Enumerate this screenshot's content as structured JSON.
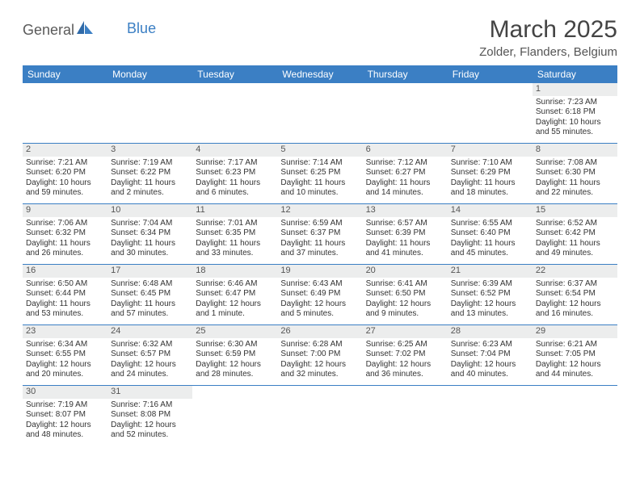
{
  "logo": {
    "part1": "General",
    "part2": "Blue"
  },
  "title": "March 2025",
  "location": "Zolder, Flanders, Belgium",
  "colors": {
    "header_bg": "#3b7fc4",
    "header_text": "#ffffff",
    "daynum_bg": "#eceded",
    "border": "#3b7fc4",
    "text": "#333333",
    "logo_gray": "#5a5a5a",
    "logo_blue": "#3b7fc4"
  },
  "weekdays": [
    "Sunday",
    "Monday",
    "Tuesday",
    "Wednesday",
    "Thursday",
    "Friday",
    "Saturday"
  ],
  "weeks": [
    [
      null,
      null,
      null,
      null,
      null,
      null,
      {
        "n": "1",
        "sr": "Sunrise: 7:23 AM",
        "ss": "Sunset: 6:18 PM",
        "dl1": "Daylight: 10 hours",
        "dl2": "and 55 minutes."
      }
    ],
    [
      {
        "n": "2",
        "sr": "Sunrise: 7:21 AM",
        "ss": "Sunset: 6:20 PM",
        "dl1": "Daylight: 10 hours",
        "dl2": "and 59 minutes."
      },
      {
        "n": "3",
        "sr": "Sunrise: 7:19 AM",
        "ss": "Sunset: 6:22 PM",
        "dl1": "Daylight: 11 hours",
        "dl2": "and 2 minutes."
      },
      {
        "n": "4",
        "sr": "Sunrise: 7:17 AM",
        "ss": "Sunset: 6:23 PM",
        "dl1": "Daylight: 11 hours",
        "dl2": "and 6 minutes."
      },
      {
        "n": "5",
        "sr": "Sunrise: 7:14 AM",
        "ss": "Sunset: 6:25 PM",
        "dl1": "Daylight: 11 hours",
        "dl2": "and 10 minutes."
      },
      {
        "n": "6",
        "sr": "Sunrise: 7:12 AM",
        "ss": "Sunset: 6:27 PM",
        "dl1": "Daylight: 11 hours",
        "dl2": "and 14 minutes."
      },
      {
        "n": "7",
        "sr": "Sunrise: 7:10 AM",
        "ss": "Sunset: 6:29 PM",
        "dl1": "Daylight: 11 hours",
        "dl2": "and 18 minutes."
      },
      {
        "n": "8",
        "sr": "Sunrise: 7:08 AM",
        "ss": "Sunset: 6:30 PM",
        "dl1": "Daylight: 11 hours",
        "dl2": "and 22 minutes."
      }
    ],
    [
      {
        "n": "9",
        "sr": "Sunrise: 7:06 AM",
        "ss": "Sunset: 6:32 PM",
        "dl1": "Daylight: 11 hours",
        "dl2": "and 26 minutes."
      },
      {
        "n": "10",
        "sr": "Sunrise: 7:04 AM",
        "ss": "Sunset: 6:34 PM",
        "dl1": "Daylight: 11 hours",
        "dl2": "and 30 minutes."
      },
      {
        "n": "11",
        "sr": "Sunrise: 7:01 AM",
        "ss": "Sunset: 6:35 PM",
        "dl1": "Daylight: 11 hours",
        "dl2": "and 33 minutes."
      },
      {
        "n": "12",
        "sr": "Sunrise: 6:59 AM",
        "ss": "Sunset: 6:37 PM",
        "dl1": "Daylight: 11 hours",
        "dl2": "and 37 minutes."
      },
      {
        "n": "13",
        "sr": "Sunrise: 6:57 AM",
        "ss": "Sunset: 6:39 PM",
        "dl1": "Daylight: 11 hours",
        "dl2": "and 41 minutes."
      },
      {
        "n": "14",
        "sr": "Sunrise: 6:55 AM",
        "ss": "Sunset: 6:40 PM",
        "dl1": "Daylight: 11 hours",
        "dl2": "and 45 minutes."
      },
      {
        "n": "15",
        "sr": "Sunrise: 6:52 AM",
        "ss": "Sunset: 6:42 PM",
        "dl1": "Daylight: 11 hours",
        "dl2": "and 49 minutes."
      }
    ],
    [
      {
        "n": "16",
        "sr": "Sunrise: 6:50 AM",
        "ss": "Sunset: 6:44 PM",
        "dl1": "Daylight: 11 hours",
        "dl2": "and 53 minutes."
      },
      {
        "n": "17",
        "sr": "Sunrise: 6:48 AM",
        "ss": "Sunset: 6:45 PM",
        "dl1": "Daylight: 11 hours",
        "dl2": "and 57 minutes."
      },
      {
        "n": "18",
        "sr": "Sunrise: 6:46 AM",
        "ss": "Sunset: 6:47 PM",
        "dl1": "Daylight: 12 hours",
        "dl2": "and 1 minute."
      },
      {
        "n": "19",
        "sr": "Sunrise: 6:43 AM",
        "ss": "Sunset: 6:49 PM",
        "dl1": "Daylight: 12 hours",
        "dl2": "and 5 minutes."
      },
      {
        "n": "20",
        "sr": "Sunrise: 6:41 AM",
        "ss": "Sunset: 6:50 PM",
        "dl1": "Daylight: 12 hours",
        "dl2": "and 9 minutes."
      },
      {
        "n": "21",
        "sr": "Sunrise: 6:39 AM",
        "ss": "Sunset: 6:52 PM",
        "dl1": "Daylight: 12 hours",
        "dl2": "and 13 minutes."
      },
      {
        "n": "22",
        "sr": "Sunrise: 6:37 AM",
        "ss": "Sunset: 6:54 PM",
        "dl1": "Daylight: 12 hours",
        "dl2": "and 16 minutes."
      }
    ],
    [
      {
        "n": "23",
        "sr": "Sunrise: 6:34 AM",
        "ss": "Sunset: 6:55 PM",
        "dl1": "Daylight: 12 hours",
        "dl2": "and 20 minutes."
      },
      {
        "n": "24",
        "sr": "Sunrise: 6:32 AM",
        "ss": "Sunset: 6:57 PM",
        "dl1": "Daylight: 12 hours",
        "dl2": "and 24 minutes."
      },
      {
        "n": "25",
        "sr": "Sunrise: 6:30 AM",
        "ss": "Sunset: 6:59 PM",
        "dl1": "Daylight: 12 hours",
        "dl2": "and 28 minutes."
      },
      {
        "n": "26",
        "sr": "Sunrise: 6:28 AM",
        "ss": "Sunset: 7:00 PM",
        "dl1": "Daylight: 12 hours",
        "dl2": "and 32 minutes."
      },
      {
        "n": "27",
        "sr": "Sunrise: 6:25 AM",
        "ss": "Sunset: 7:02 PM",
        "dl1": "Daylight: 12 hours",
        "dl2": "and 36 minutes."
      },
      {
        "n": "28",
        "sr": "Sunrise: 6:23 AM",
        "ss": "Sunset: 7:04 PM",
        "dl1": "Daylight: 12 hours",
        "dl2": "and 40 minutes."
      },
      {
        "n": "29",
        "sr": "Sunrise: 6:21 AM",
        "ss": "Sunset: 7:05 PM",
        "dl1": "Daylight: 12 hours",
        "dl2": "and 44 minutes."
      }
    ],
    [
      {
        "n": "30",
        "sr": "Sunrise: 7:19 AM",
        "ss": "Sunset: 8:07 PM",
        "dl1": "Daylight: 12 hours",
        "dl2": "and 48 minutes."
      },
      {
        "n": "31",
        "sr": "Sunrise: 7:16 AM",
        "ss": "Sunset: 8:08 PM",
        "dl1": "Daylight: 12 hours",
        "dl2": "and 52 minutes."
      },
      null,
      null,
      null,
      null,
      null
    ]
  ]
}
